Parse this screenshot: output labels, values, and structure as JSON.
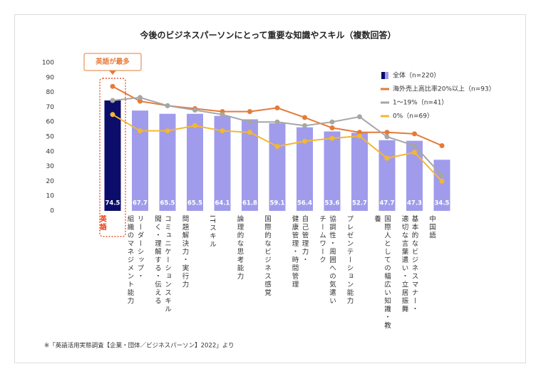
{
  "chart_data": {
    "type": "bar",
    "title": "今後のビジネスパーソンにとって重要な知識やスキル（複数回答）",
    "annotation": "英語が最多",
    "footnote": "※「英語活用実態調査【企業・団体／ビジネスパーソン】2022」より",
    "highlight_index": 0,
    "highlight_color": "#e8380d",
    "categories": [
      "英語",
      "リーダーシップ・\n組織のマネジメント能力",
      "コミュニケーションスキル\n聞く・理解する・伝える",
      "問題解決力・実行力",
      "ITスキル",
      "論理的な思考能力",
      "国際的なビジネス感覚",
      "自己管理力・\n健康管理・時間管理",
      "協調性・周囲への気遣い\nチームワーク",
      "プレゼンテーション能力",
      "国際人としての幅広い知識・教養",
      "基本的なビジネスマナー・\n適切な言葉遣い・立居振舞",
      "中国語"
    ],
    "series": [
      {
        "name": "全体（n=220）",
        "type": "bar",
        "color": "#a09ceb",
        "highlight_fill": "#0c0c6b",
        "values": [
          74.5,
          67.7,
          65.5,
          65.5,
          64.1,
          61.8,
          59.1,
          56.4,
          53.6,
          52.7,
          47.7,
          47.3,
          34.5
        ]
      },
      {
        "name": "海外売上高比率20%以上（n=93）",
        "type": "line",
        "color": "#e47b3a",
        "values": [
          84,
          74,
          71,
          69,
          67,
          67,
          69.5,
          63,
          56,
          53,
          53,
          52,
          44
        ]
      },
      {
        "name": "1～19%（n=41）",
        "type": "line",
        "color": "#a6a6a6",
        "values": [
          74.5,
          76.5,
          71,
          68,
          65,
          60,
          60,
          57.5,
          60,
          63.5,
          50,
          44,
          24
        ]
      },
      {
        "name": "0%（n=69）",
        "type": "line",
        "color": "#f5b731",
        "values": [
          65,
          54,
          54,
          57.5,
          54,
          53,
          43.5,
          47,
          49,
          50.5,
          35.5,
          39.5,
          20
        ]
      }
    ],
    "ylim": [
      0,
      100
    ],
    "yticks": [
      0,
      10,
      20,
      30,
      40,
      50,
      60,
      70,
      80,
      90,
      100
    ],
    "grid": false
  }
}
